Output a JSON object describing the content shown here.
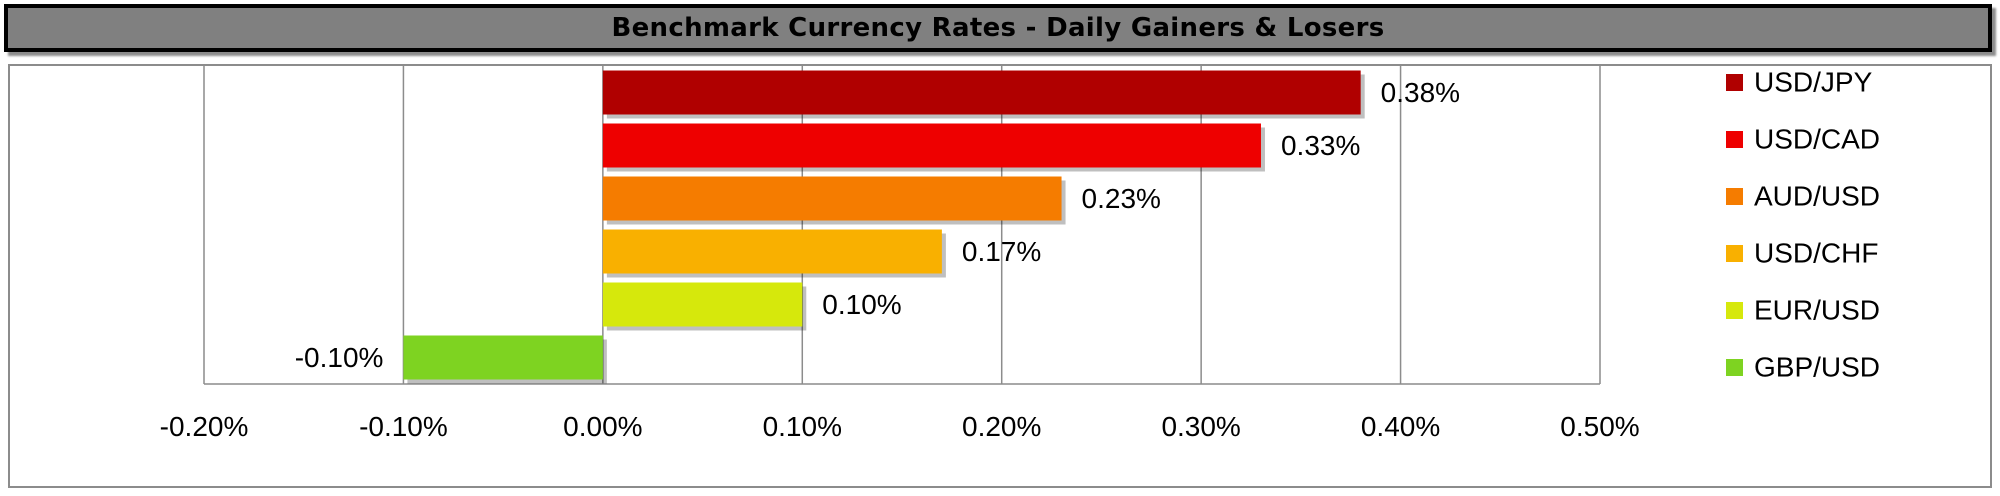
{
  "chart_data": {
    "type": "bar",
    "orientation": "horizontal",
    "title": "Benchmark Currency Rates - Daily Gainers & Losers",
    "categories": [
      "USD/JPY",
      "USD/CAD",
      "AUD/USD",
      "USD/CHF",
      "EUR/USD",
      "GBP/USD"
    ],
    "values": [
      0.38,
      0.33,
      0.23,
      0.17,
      0.1,
      -0.1
    ],
    "value_labels": [
      "0.38%",
      "0.33%",
      "0.23%",
      "0.17%",
      "0.10%",
      "-0.10%"
    ],
    "colors": [
      "#b00000",
      "#ee0000",
      "#f57c00",
      "#f9b000",
      "#d6e80c",
      "#7ed321"
    ],
    "xlim": [
      -0.2,
      0.5
    ],
    "x_ticks": [
      -0.2,
      -0.1,
      0.0,
      0.1,
      0.2,
      0.3,
      0.4,
      0.5
    ],
    "x_tick_labels": [
      "-0.20%",
      "-0.10%",
      "0.00%",
      "0.10%",
      "0.20%",
      "0.30%",
      "0.40%",
      "0.50%"
    ],
    "grid": true,
    "legend_position": "right",
    "xlabel": "",
    "ylabel": ""
  }
}
